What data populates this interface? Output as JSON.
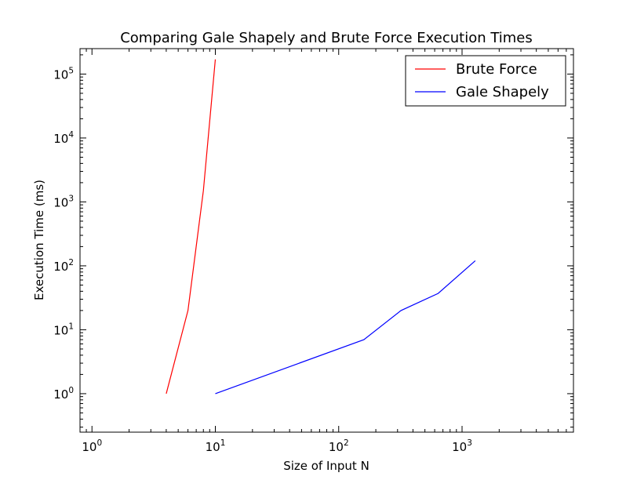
{
  "chart_data": {
    "type": "line",
    "title": "Comparing Gale Shapely and Brute Force Execution Times",
    "xlabel": "Size of Input N",
    "ylabel": "Execution Time (ms)",
    "xscale": "log",
    "yscale": "log",
    "xlim": [
      0.8,
      8000
    ],
    "ylim": [
      0.25,
      250000
    ],
    "x_ticks": [
      {
        "base": "10",
        "exp": "0",
        "value": 1
      },
      {
        "base": "10",
        "exp": "1",
        "value": 10
      },
      {
        "base": "10",
        "exp": "2",
        "value": 100
      },
      {
        "base": "10",
        "exp": "3",
        "value": 1000
      }
    ],
    "y_ticks": [
      {
        "base": "10",
        "exp": "0",
        "value": 1
      },
      {
        "base": "10",
        "exp": "1",
        "value": 10
      },
      {
        "base": "10",
        "exp": "2",
        "value": 100
      },
      {
        "base": "10",
        "exp": "3",
        "value": 1000
      },
      {
        "base": "10",
        "exp": "4",
        "value": 10000
      },
      {
        "base": "10",
        "exp": "5",
        "value": 100000
      }
    ],
    "legend_position": "top-right",
    "grid": false,
    "series": [
      {
        "name": "Brute Force",
        "color": "#ff0000",
        "x": [
          4,
          6,
          8,
          10
        ],
        "y": [
          1,
          20,
          1500,
          170000
        ]
      },
      {
        "name": "Gale Shapely",
        "color": "#0000ff",
        "x": [
          10,
          160,
          320,
          640,
          1280
        ],
        "y": [
          1,
          7,
          20,
          37,
          120
        ]
      }
    ]
  }
}
